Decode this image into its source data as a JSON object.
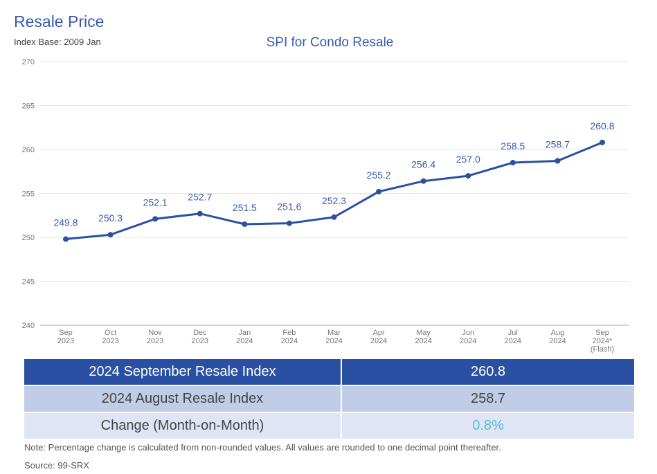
{
  "header": {
    "title": "Resale Price",
    "subtitle": "Index Base: 2009 Jan"
  },
  "chart_data": {
    "type": "line",
    "title": "SPI for Condo Resale",
    "categories": [
      [
        "Sep",
        "2023"
      ],
      [
        "Oct",
        "2023"
      ],
      [
        "Nov",
        "2023"
      ],
      [
        "Dec",
        "2023"
      ],
      [
        "Jan",
        "2024"
      ],
      [
        "Feb",
        "2024"
      ],
      [
        "Mar",
        "2024"
      ],
      [
        "Apr",
        "2024"
      ],
      [
        "May",
        "2024"
      ],
      [
        "Jun",
        "2024"
      ],
      [
        "Jul",
        "2024"
      ],
      [
        "Aug",
        "2024"
      ],
      [
        "Sep",
        "2024*",
        "(Flash)"
      ]
    ],
    "values": [
      249.8,
      250.3,
      252.1,
      252.7,
      251.5,
      251.6,
      252.3,
      255.2,
      256.4,
      257.0,
      258.5,
      258.7,
      260.8
    ],
    "data_labels": [
      "249.8",
      "250.3",
      "252.1",
      "252.7",
      "251.5",
      "251.6",
      "252.3",
      "255.2",
      "256.4",
      "257.0",
      "258.5",
      "258.7",
      "260.8"
    ],
    "ylim": [
      240,
      270
    ],
    "yticks": [
      240,
      245,
      250,
      255,
      260,
      265,
      270
    ],
    "grid": true,
    "color": "#2a50a3",
    "label_color": "#3a5bb0"
  },
  "table": {
    "rows": [
      {
        "label": "2024 September Resale Index",
        "value": "260.8"
      },
      {
        "label": "2024 August Resale Index",
        "value": "258.7"
      },
      {
        "label": "Change (Month-on-Month)",
        "value": "0.8%"
      }
    ],
    "change_color": "#4fc0d0"
  },
  "note": "Note: Percentage change is calculated from non-rounded values.  All values are rounded to one decimal point thereafter.",
  "source": "Source: 99-SRX"
}
